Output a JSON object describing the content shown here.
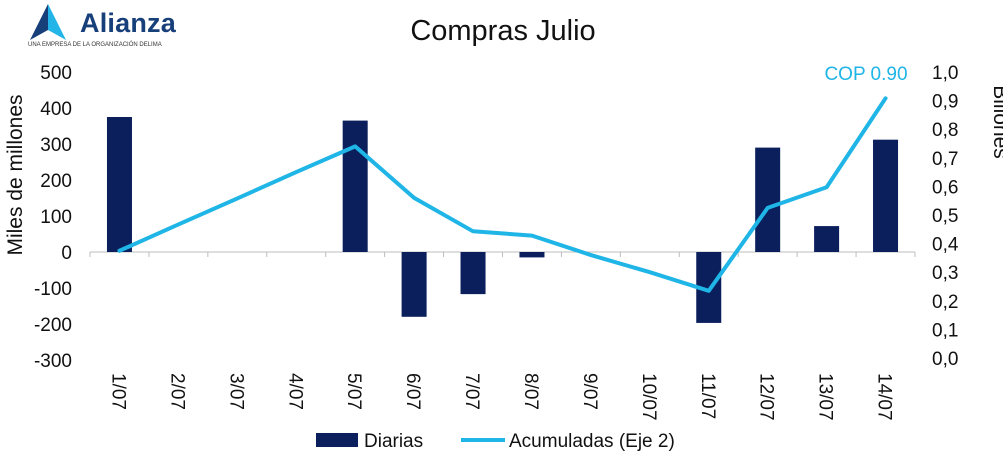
{
  "logo": {
    "name": "Alianza",
    "tagline": "UNA EMPRESA DE LA ORGANIZACIÓN DELIMA"
  },
  "chart_data": {
    "type": "bar",
    "title": "Compras Julio",
    "categories": [
      "1/07",
      "2/07",
      "3/07",
      "4/07",
      "5/07",
      "6/07",
      "7/07",
      "8/07",
      "9/07",
      "10/07",
      "11/07",
      "12/07",
      "13/07",
      "14/07"
    ],
    "series": [
      {
        "name": "Diarias",
        "type": "bar",
        "axis": "left",
        "color": "#0a1f5c",
        "values": [
          375,
          null,
          null,
          null,
          365,
          -180,
          -117,
          -15,
          null,
          null,
          -197,
          290,
          72,
          312
        ]
      },
      {
        "name": "Acumuladas (Eje 2)",
        "type": "line",
        "axis": "right",
        "color": "#1fb5e6",
        "values": [
          0.375,
          0.467,
          0.558,
          0.65,
          0.74,
          0.56,
          0.443,
          0.428,
          0.36,
          0.3,
          0.235,
          0.525,
          0.597,
          0.908
        ]
      }
    ],
    "ylabel": "Miles de millones",
    "y2label": "Billones",
    "ylim": [
      -300,
      500
    ],
    "yticks": [
      "500",
      "400",
      "300",
      "200",
      "100",
      "0",
      "-100",
      "-200",
      "-300"
    ],
    "y2lim": [
      0,
      1.0
    ],
    "y2ticks": [
      "1,0",
      "0,9",
      "0,8",
      "0,7",
      "0,6",
      "0,5",
      "0,4",
      "0,3",
      "0,2",
      "0,1",
      "0,0"
    ],
    "annotation": "COP 0.90",
    "legend": [
      "Diarias",
      "Acumuladas (Eje 2)"
    ],
    "legend_position": "bottom",
    "grid": false
  }
}
